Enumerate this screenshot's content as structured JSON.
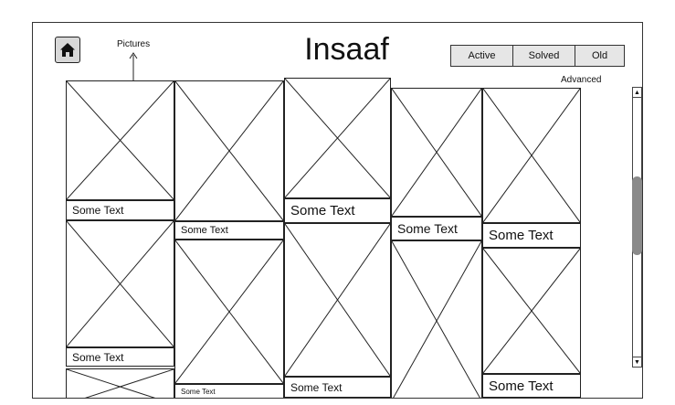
{
  "header": {
    "title": "Insaaf",
    "pictures_annotation": "Pictures",
    "home_icon": "home-icon"
  },
  "filters": {
    "tabs": [
      {
        "label": "Active"
      },
      {
        "label": "Solved"
      },
      {
        "label": "Old"
      }
    ],
    "advanced_label": "Advanced"
  },
  "gallery": {
    "captions": {
      "c1a": "Some Text",
      "c1b": "Some Text",
      "c2a": "Some Text",
      "c2b": "Some Text",
      "c3a": "Some Text",
      "c3b": "Some Text",
      "c4a": "Some Text",
      "c5a": "Some Text",
      "c5b": "Some Text"
    }
  },
  "scrollbar": {
    "up_icon": "scroll-up-arrow-icon",
    "down_icon": "scroll-down-arrow-icon"
  }
}
